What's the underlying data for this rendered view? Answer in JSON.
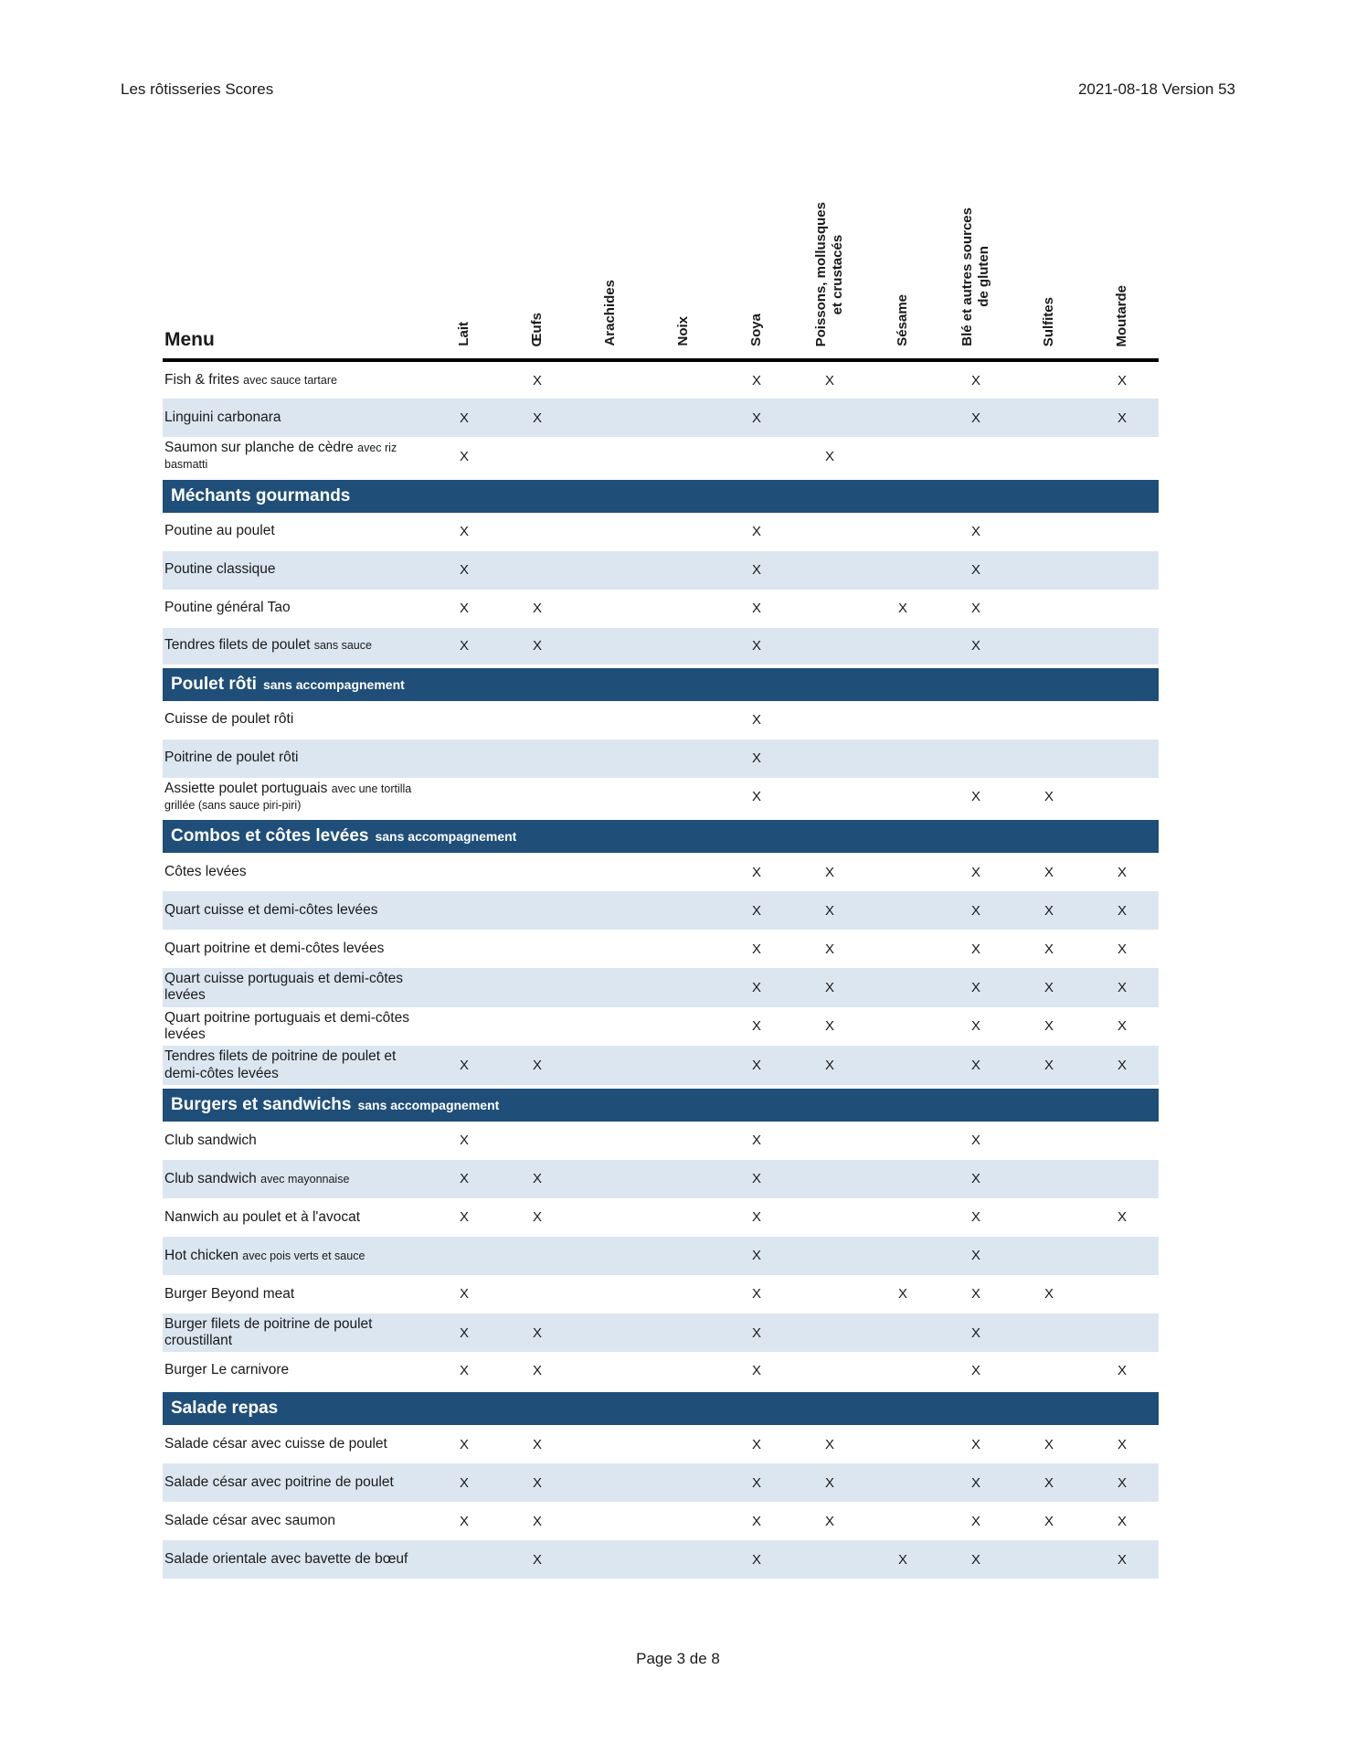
{
  "page_header": {
    "left": "Les rôtisseries Scores",
    "right": "2021-08-18 Version 53"
  },
  "footer": {
    "page_label": "Page 3 de 8"
  },
  "colors": {
    "section_bg": "#1F4E79",
    "row_alt_bg": "#DCE6F1"
  },
  "table": {
    "menu_header": "Menu",
    "mark": "X",
    "columns": [
      "Lait",
      "Œufs",
      "Arachides",
      "Noix",
      "Soya",
      "Poissons, mollusques\net crustacés",
      "Sésame",
      "Blé et autres sources\nde gluten",
      "Sulfites",
      "Moutarde"
    ],
    "rows": [
      {
        "type": "item",
        "name": "Fish & frites",
        "note": "avec sauce tartare",
        "allergens": [
          1,
          4,
          5,
          7,
          9
        ]
      },
      {
        "type": "item",
        "name": "Linguini carbonara",
        "note": "",
        "allergens": [
          0,
          1,
          4,
          7,
          9
        ]
      },
      {
        "type": "item",
        "name": "Saumon sur planche de cèdre",
        "note": "avec riz basmatti",
        "allergens": [
          0,
          5
        ]
      },
      {
        "type": "section",
        "name": "Méchants gourmands",
        "note": ""
      },
      {
        "type": "item",
        "name": "Poutine au poulet",
        "note": "",
        "allergens": [
          0,
          4,
          7
        ]
      },
      {
        "type": "item",
        "name": "Poutine classique",
        "note": "",
        "allergens": [
          0,
          4,
          7
        ]
      },
      {
        "type": "item",
        "name": "Poutine général Tao",
        "note": "",
        "allergens": [
          0,
          1,
          4,
          6,
          7
        ]
      },
      {
        "type": "item",
        "name": "Tendres filets de poulet",
        "note": "sans sauce",
        "allergens": [
          0,
          1,
          4,
          7
        ]
      },
      {
        "type": "section",
        "name": "Poulet rôti",
        "note": "sans accompagnement"
      },
      {
        "type": "item",
        "name": "Cuisse de poulet rôti",
        "note": "",
        "allergens": [
          4
        ]
      },
      {
        "type": "item",
        "name": "Poitrine de poulet rôti",
        "note": "",
        "allergens": [
          4
        ]
      },
      {
        "type": "item",
        "name": "Assiette poulet portuguais",
        "note": "avec une tortilla grillée (sans sauce piri-piri)",
        "allergens": [
          4,
          7,
          8
        ]
      },
      {
        "type": "section",
        "name": "Combos et côtes levées",
        "note": "sans accompagnement"
      },
      {
        "type": "item",
        "name": "Côtes levées",
        "note": "",
        "allergens": [
          4,
          5,
          7,
          8,
          9
        ]
      },
      {
        "type": "item",
        "name": "Quart cuisse et demi-côtes levées",
        "note": "",
        "allergens": [
          4,
          5,
          7,
          8,
          9
        ]
      },
      {
        "type": "item",
        "name": "Quart poitrine et demi-côtes levées",
        "note": "",
        "allergens": [
          4,
          5,
          7,
          8,
          9
        ]
      },
      {
        "type": "item",
        "name": "Quart cuisse portuguais et demi-côtes levées",
        "note": "",
        "allergens": [
          4,
          5,
          7,
          8,
          9
        ]
      },
      {
        "type": "item",
        "name": "Quart poitrine portuguais et demi-côtes levées",
        "note": "",
        "allergens": [
          4,
          5,
          7,
          8,
          9
        ]
      },
      {
        "type": "item",
        "name": "Tendres filets de poitrine de poulet et demi-côtes levées",
        "note": "",
        "allergens": [
          0,
          1,
          4,
          5,
          7,
          8,
          9
        ]
      },
      {
        "type": "section",
        "name": "Burgers et sandwichs",
        "note": "sans accompagnement"
      },
      {
        "type": "item",
        "name": "Club sandwich",
        "note": "",
        "allergens": [
          0,
          4,
          7
        ]
      },
      {
        "type": "item",
        "name": "Club sandwich",
        "note": "avec mayonnaise",
        "allergens": [
          0,
          1,
          4,
          7
        ]
      },
      {
        "type": "item",
        "name": "Nanwich au poulet et à l'avocat",
        "note": "",
        "allergens": [
          0,
          1,
          4,
          7,
          9
        ]
      },
      {
        "type": "item",
        "name": "Hot chicken",
        "note": "avec pois verts et sauce",
        "allergens": [
          4,
          7
        ]
      },
      {
        "type": "item",
        "name": "Burger Beyond meat",
        "note": "",
        "allergens": [
          0,
          4,
          6,
          7,
          8
        ]
      },
      {
        "type": "item",
        "name": "Burger filets de poitrine de poulet croustillant",
        "note": "",
        "allergens": [
          0,
          1,
          4,
          7
        ]
      },
      {
        "type": "item",
        "name": "Burger Le carnivore",
        "note": "",
        "allergens": [
          0,
          1,
          4,
          7,
          9
        ]
      },
      {
        "type": "section",
        "name": "Salade repas",
        "note": ""
      },
      {
        "type": "item",
        "name": "Salade césar avec cuisse de poulet",
        "note": "",
        "allergens": [
          0,
          1,
          4,
          5,
          7,
          8,
          9
        ]
      },
      {
        "type": "item",
        "name": "Salade césar avec poitrine de poulet",
        "note": "",
        "allergens": [
          0,
          1,
          4,
          5,
          7,
          8,
          9
        ]
      },
      {
        "type": "item",
        "name": "Salade césar avec saumon",
        "note": "",
        "allergens": [
          0,
          1,
          4,
          5,
          7,
          8,
          9
        ]
      },
      {
        "type": "item",
        "name": "Salade orientale avec bavette de bœuf",
        "note": "",
        "allergens": [
          1,
          4,
          6,
          7,
          9
        ]
      }
    ]
  }
}
